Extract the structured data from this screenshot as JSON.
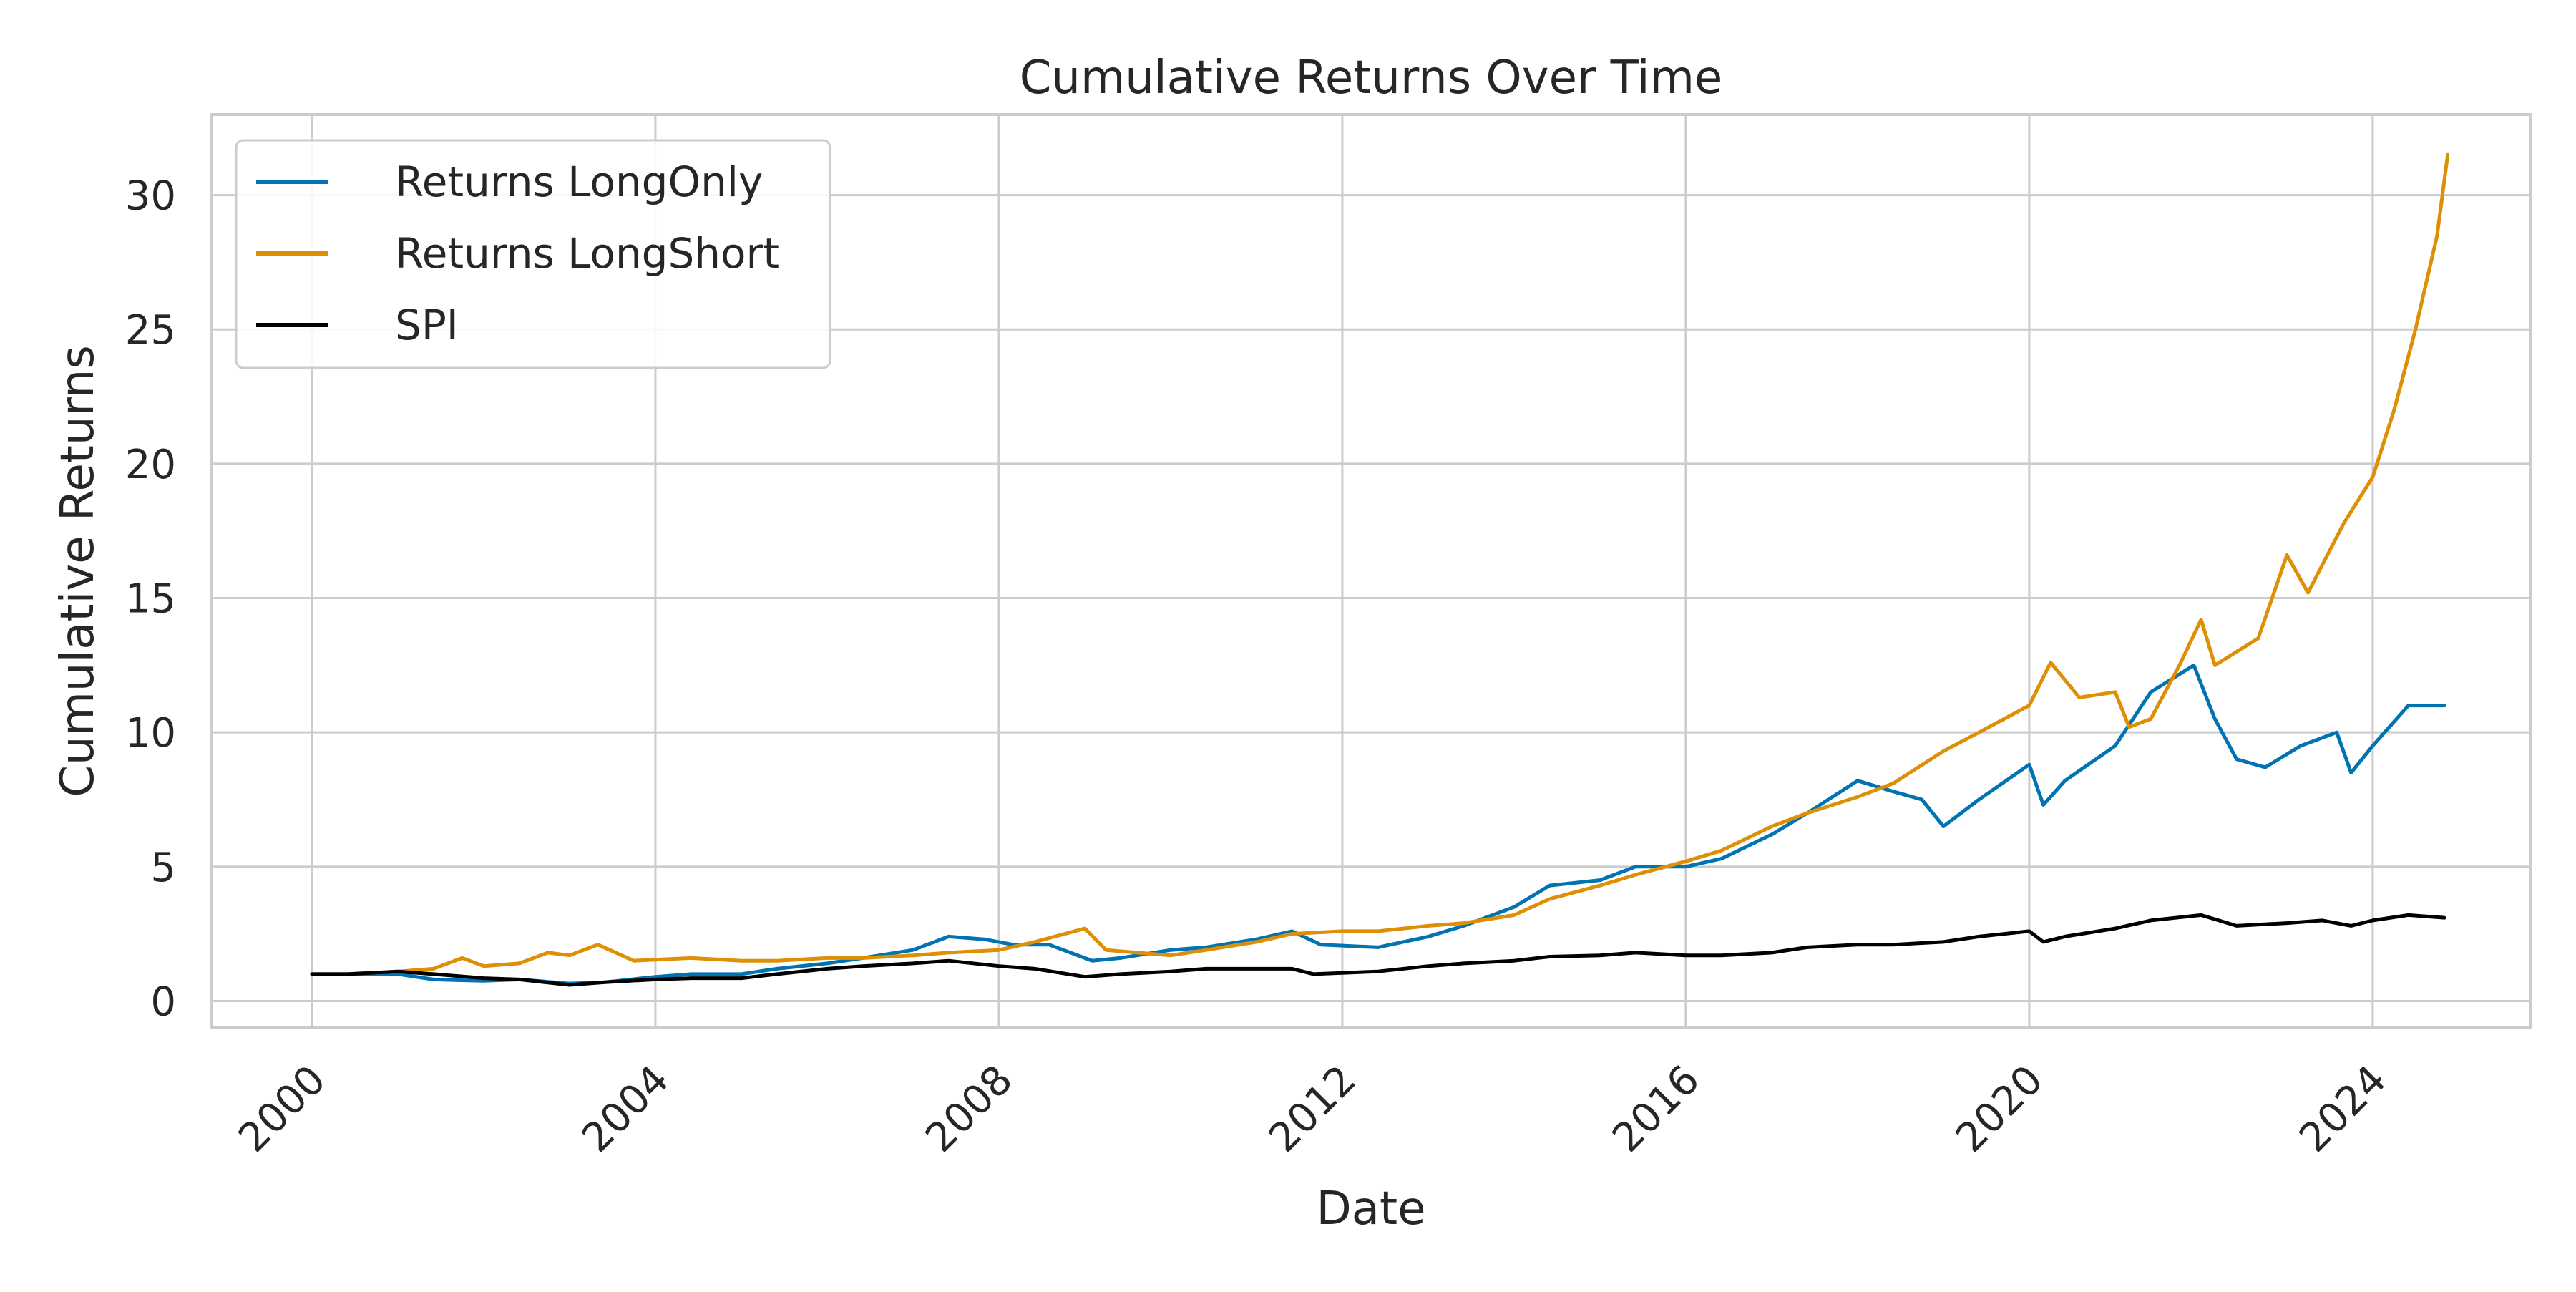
{
  "chart_data": {
    "type": "line",
    "title": "Cumulative Returns Over Time",
    "xlabel": "Date",
    "ylabel": "Cumulative Returns",
    "xlim": [
      "1998-11-01",
      "2025-11-01"
    ],
    "ylim": [
      -1,
      33
    ],
    "x_ticks": [
      "2000",
      "2004",
      "2008",
      "2012",
      "2016",
      "2020",
      "2024"
    ],
    "y_ticks": [
      0,
      5,
      10,
      15,
      20,
      25,
      30
    ],
    "grid": true,
    "legend_position": "top-left",
    "series": [
      {
        "name": "Returns LongOnly",
        "color": "#0173b2",
        "points": [
          [
            "2000-01-01",
            1.0
          ],
          [
            "2000-06-01",
            1.0
          ],
          [
            "2001-01-01",
            1.0
          ],
          [
            "2001-06-01",
            0.8
          ],
          [
            "2002-01-01",
            0.75
          ],
          [
            "2002-06-01",
            0.8
          ],
          [
            "2003-01-01",
            0.65
          ],
          [
            "2003-06-01",
            0.7
          ],
          [
            "2004-01-01",
            0.9
          ],
          [
            "2004-06-01",
            1.0
          ],
          [
            "2005-01-01",
            1.0
          ],
          [
            "2005-06-01",
            1.2
          ],
          [
            "2006-01-01",
            1.4
          ],
          [
            "2006-06-01",
            1.6
          ],
          [
            "2007-01-01",
            1.9
          ],
          [
            "2007-06-01",
            2.4
          ],
          [
            "2007-11-01",
            2.3
          ],
          [
            "2008-03-01",
            2.1
          ],
          [
            "2008-08-01",
            2.1
          ],
          [
            "2009-02-01",
            1.5
          ],
          [
            "2009-06-01",
            1.6
          ],
          [
            "2010-01-01",
            1.9
          ],
          [
            "2010-06-01",
            2.0
          ],
          [
            "2011-01-01",
            2.3
          ],
          [
            "2011-06-01",
            2.6
          ],
          [
            "2011-10-01",
            2.1
          ],
          [
            "2012-06-01",
            2.0
          ],
          [
            "2013-01-01",
            2.4
          ],
          [
            "2013-06-01",
            2.8
          ],
          [
            "2014-01-01",
            3.5
          ],
          [
            "2014-06-01",
            4.3
          ],
          [
            "2015-01-01",
            4.5
          ],
          [
            "2015-06-01",
            5.0
          ],
          [
            "2016-01-01",
            5.0
          ],
          [
            "2016-06-01",
            5.3
          ],
          [
            "2017-01-01",
            6.2
          ],
          [
            "2017-06-01",
            7.0
          ],
          [
            "2018-01-01",
            8.2
          ],
          [
            "2018-06-01",
            7.8
          ],
          [
            "2018-10-01",
            7.5
          ],
          [
            "2019-01-01",
            6.5
          ],
          [
            "2019-06-01",
            7.5
          ],
          [
            "2020-01-01",
            8.8
          ],
          [
            "2020-03-01",
            7.3
          ],
          [
            "2020-06-01",
            8.2
          ],
          [
            "2021-01-01",
            9.5
          ],
          [
            "2021-06-01",
            11.5
          ],
          [
            "2021-12-01",
            12.5
          ],
          [
            "2022-03-01",
            10.5
          ],
          [
            "2022-06-01",
            9.0
          ],
          [
            "2022-10-01",
            8.7
          ],
          [
            "2023-03-01",
            9.5
          ],
          [
            "2023-08-01",
            10.0
          ],
          [
            "2023-10-01",
            8.5
          ],
          [
            "2024-01-01",
            9.5
          ],
          [
            "2024-06-01",
            11.0
          ],
          [
            "2024-11-01",
            11.0
          ]
        ]
      },
      {
        "name": "Returns LongShort",
        "color": "#de8f05",
        "points": [
          [
            "2000-01-01",
            1.0
          ],
          [
            "2000-06-01",
            1.0
          ],
          [
            "2001-01-01",
            1.1
          ],
          [
            "2001-06-01",
            1.2
          ],
          [
            "2001-10-01",
            1.6
          ],
          [
            "2002-01-01",
            1.3
          ],
          [
            "2002-06-01",
            1.4
          ],
          [
            "2002-10-01",
            1.8
          ],
          [
            "2003-01-01",
            1.7
          ],
          [
            "2003-05-01",
            2.1
          ],
          [
            "2003-10-01",
            1.5
          ],
          [
            "2004-06-01",
            1.6
          ],
          [
            "2005-01-01",
            1.5
          ],
          [
            "2005-06-01",
            1.5
          ],
          [
            "2006-01-01",
            1.6
          ],
          [
            "2006-06-01",
            1.6
          ],
          [
            "2007-01-01",
            1.7
          ],
          [
            "2007-06-01",
            1.8
          ],
          [
            "2008-01-01",
            1.9
          ],
          [
            "2008-06-01",
            2.2
          ],
          [
            "2009-01-01",
            2.7
          ],
          [
            "2009-04-01",
            1.9
          ],
          [
            "2010-01-01",
            1.7
          ],
          [
            "2010-06-01",
            1.9
          ],
          [
            "2011-01-01",
            2.2
          ],
          [
            "2011-06-01",
            2.5
          ],
          [
            "2012-01-01",
            2.6
          ],
          [
            "2012-06-01",
            2.6
          ],
          [
            "2013-01-01",
            2.8
          ],
          [
            "2013-06-01",
            2.9
          ],
          [
            "2014-01-01",
            3.2
          ],
          [
            "2014-06-01",
            3.8
          ],
          [
            "2015-01-01",
            4.3
          ],
          [
            "2015-06-01",
            4.7
          ],
          [
            "2016-01-01",
            5.2
          ],
          [
            "2016-06-01",
            5.6
          ],
          [
            "2017-01-01",
            6.5
          ],
          [
            "2017-06-01",
            7.0
          ],
          [
            "2018-01-01",
            7.6
          ],
          [
            "2018-06-01",
            8.1
          ],
          [
            "2019-01-01",
            9.3
          ],
          [
            "2019-06-01",
            10.0
          ],
          [
            "2020-01-01",
            11.0
          ],
          [
            "2020-04-01",
            12.6
          ],
          [
            "2020-08-01",
            11.3
          ],
          [
            "2021-01-01",
            11.5
          ],
          [
            "2021-03-01",
            10.2
          ],
          [
            "2021-06-01",
            10.5
          ],
          [
            "2021-10-01",
            12.5
          ],
          [
            "2022-01-01",
            14.2
          ],
          [
            "2022-03-01",
            12.5
          ],
          [
            "2022-09-01",
            13.5
          ],
          [
            "2023-01-01",
            16.6
          ],
          [
            "2023-04-01",
            15.2
          ],
          [
            "2023-09-01",
            17.8
          ],
          [
            "2024-01-01",
            19.5
          ],
          [
            "2024-04-01",
            22.0
          ],
          [
            "2024-07-01",
            25.0
          ],
          [
            "2024-10-01",
            28.5
          ],
          [
            "2024-11-15",
            31.5
          ]
        ]
      },
      {
        "name": "SPI",
        "color": "#000000",
        "points": [
          [
            "2000-01-01",
            1.0
          ],
          [
            "2000-06-01",
            1.0
          ],
          [
            "2001-01-01",
            1.1
          ],
          [
            "2001-06-01",
            1.0
          ],
          [
            "2002-01-01",
            0.85
          ],
          [
            "2002-06-01",
            0.8
          ],
          [
            "2003-01-01",
            0.6
          ],
          [
            "2003-06-01",
            0.7
          ],
          [
            "2004-01-01",
            0.8
          ],
          [
            "2004-06-01",
            0.85
          ],
          [
            "2005-01-01",
            0.85
          ],
          [
            "2005-06-01",
            1.0
          ],
          [
            "2006-01-01",
            1.2
          ],
          [
            "2006-06-01",
            1.3
          ],
          [
            "2007-01-01",
            1.4
          ],
          [
            "2007-06-01",
            1.5
          ],
          [
            "2008-01-01",
            1.3
          ],
          [
            "2008-06-01",
            1.2
          ],
          [
            "2009-01-01",
            0.9
          ],
          [
            "2009-06-01",
            1.0
          ],
          [
            "2010-01-01",
            1.1
          ],
          [
            "2010-06-01",
            1.2
          ],
          [
            "2011-01-01",
            1.2
          ],
          [
            "2011-06-01",
            1.2
          ],
          [
            "2011-09-01",
            1.0
          ],
          [
            "2012-06-01",
            1.1
          ],
          [
            "2013-01-01",
            1.3
          ],
          [
            "2013-06-01",
            1.4
          ],
          [
            "2014-01-01",
            1.5
          ],
          [
            "2014-06-01",
            1.65
          ],
          [
            "2015-01-01",
            1.7
          ],
          [
            "2015-06-01",
            1.8
          ],
          [
            "2016-01-01",
            1.7
          ],
          [
            "2016-06-01",
            1.7
          ],
          [
            "2017-01-01",
            1.8
          ],
          [
            "2017-06-01",
            2.0
          ],
          [
            "2018-01-01",
            2.1
          ],
          [
            "2018-06-01",
            2.1
          ],
          [
            "2019-01-01",
            2.2
          ],
          [
            "2019-06-01",
            2.4
          ],
          [
            "2020-01-01",
            2.6
          ],
          [
            "2020-03-01",
            2.2
          ],
          [
            "2020-06-01",
            2.4
          ],
          [
            "2021-01-01",
            2.7
          ],
          [
            "2021-06-01",
            3.0
          ],
          [
            "2022-01-01",
            3.2
          ],
          [
            "2022-06-01",
            2.8
          ],
          [
            "2023-01-01",
            2.9
          ],
          [
            "2023-06-01",
            3.0
          ],
          [
            "2023-10-01",
            2.8
          ],
          [
            "2024-01-01",
            3.0
          ],
          [
            "2024-06-01",
            3.2
          ],
          [
            "2024-11-01",
            3.1
          ]
        ]
      }
    ]
  }
}
